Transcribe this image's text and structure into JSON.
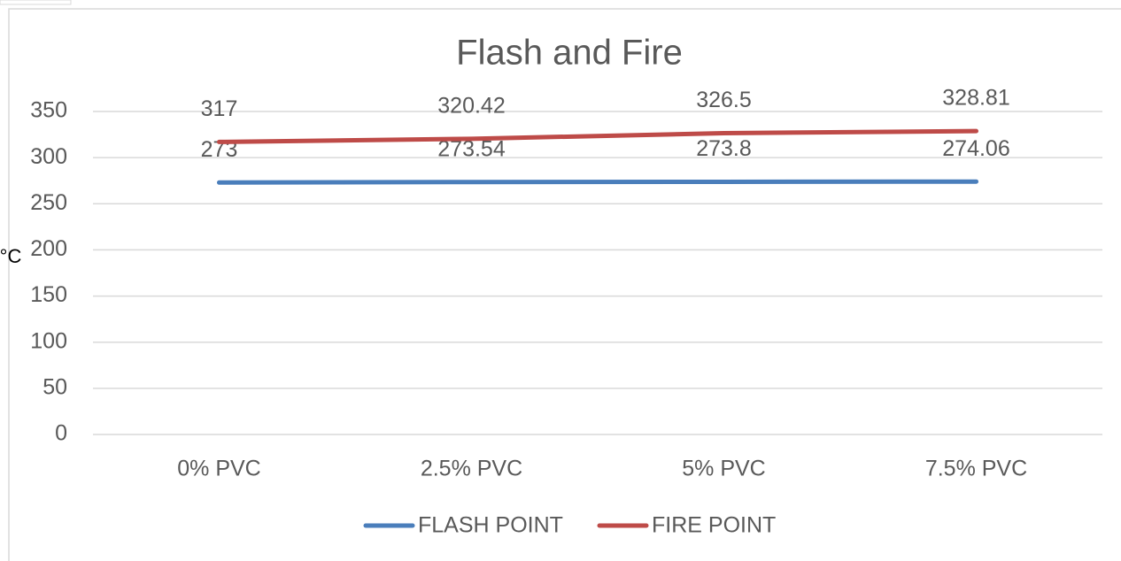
{
  "chart_data": {
    "type": "line",
    "title": "Flash and Fire",
    "y_label": "°C",
    "categories": [
      "0% PVC",
      "2.5% PVC",
      "5% PVC",
      "7.5% PVC"
    ],
    "series": [
      {
        "name": "FLASH POINT",
        "color": "#4a7ebb",
        "values": [
          273,
          273.54,
          273.8,
          274.06
        ]
      },
      {
        "name": "FIRE POINT",
        "color": "#be4b48",
        "values": [
          317,
          320.42,
          326.5,
          328.81
        ]
      }
    ],
    "ylim": [
      0,
      350
    ],
    "yticks": [
      0,
      50,
      100,
      150,
      200,
      250,
      300,
      350
    ],
    "grid": true,
    "legend": "bottom"
  }
}
